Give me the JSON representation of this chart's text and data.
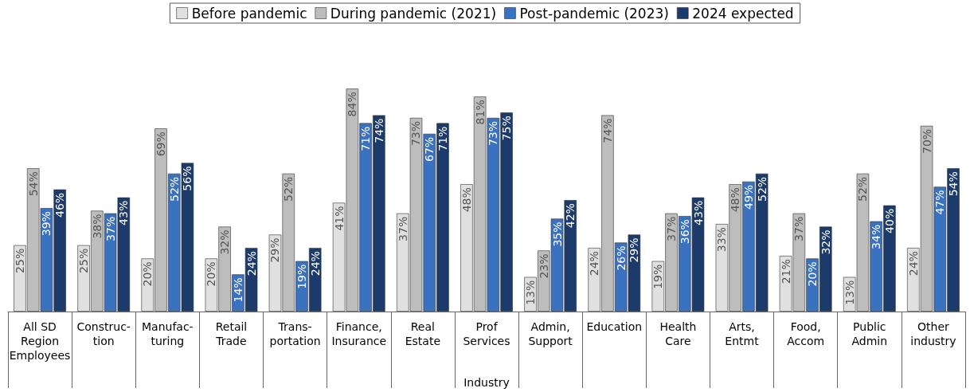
{
  "chart_data": {
    "type": "bar",
    "xlabel": "Industry",
    "legend": "top",
    "tick_labels": "x",
    "categories": [
      "All SD\nRegion\nEmployees",
      "Construc-\ntion",
      "Manufac-\nturing",
      "Retail\nTrade",
      "Trans-\nportation",
      "Finance,\nInsurance",
      "Real\nEstate",
      "Prof\nServices",
      "Admin,\nSupport",
      "Education",
      "Health\nCare",
      "Arts,\nEntmt",
      "Food,\nAccom",
      "Public\nAdmin",
      "Other\nindustry"
    ],
    "series": [
      {
        "name": "Before pandemic",
        "color": "#e0e0e0",
        "values": [
          25,
          25,
          20,
          20,
          29,
          41,
          37,
          48,
          13,
          24,
          19,
          33,
          21,
          13,
          24
        ],
        "value_labels": [
          "25%",
          "25%",
          "20%",
          "20%",
          "29%",
          "41%",
          "37%",
          "48%",
          "13%",
          "24%",
          "19%",
          "33%",
          "21%",
          "13%",
          "24%"
        ]
      },
      {
        "name": "During pandemic (2021)",
        "color": "#bdbdbd",
        "values": [
          54,
          38,
          69,
          32,
          52,
          84,
          73,
          81,
          23,
          74,
          37,
          48,
          37,
          52,
          70
        ],
        "value_labels": [
          "54%",
          "38%",
          "69%",
          "32%",
          "52%",
          "84%",
          "73%",
          "81%",
          "23%",
          "74%",
          "37%",
          "48%",
          "37%",
          "52%",
          "70%"
        ]
      },
      {
        "name": "Post-pandemic (2023)",
        "color": "#3a72c0",
        "values": [
          39,
          37,
          52,
          14,
          19,
          71,
          67,
          73,
          35,
          26,
          36,
          49,
          20,
          34,
          47
        ],
        "value_labels": [
          "39%",
          "37%",
          "52%",
          "14%",
          "19%",
          "71%",
          "67%",
          "73%",
          "35%",
          "26%",
          "36%",
          "49%",
          "20%",
          "34%",
          "47%"
        ]
      },
      {
        "name": "2024 expected",
        "color": "#1c3a6a",
        "values": [
          46,
          43,
          56,
          24,
          24,
          74,
          71,
          75,
          42,
          29,
          43,
          52,
          32,
          40,
          54
        ],
        "value_labels": [
          "46%",
          "43%",
          "56%",
          "24%",
          "24%",
          "74%",
          "71%",
          "75%",
          "42%",
          "29%",
          "43%",
          "52%",
          "32%",
          "40%",
          "54%"
        ]
      }
    ]
  }
}
